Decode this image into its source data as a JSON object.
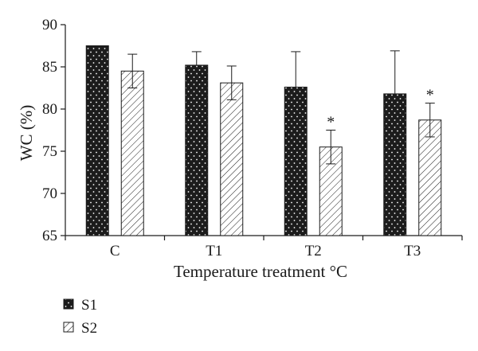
{
  "chart_data": {
    "type": "bar",
    "xlabel": "Temperature treatment °C",
    "ylabel": "WC (%)",
    "ylim": [
      65,
      90
    ],
    "yticks": [
      65,
      70,
      75,
      80,
      85,
      90
    ],
    "categories": [
      "C",
      "T1",
      "T2",
      "T3"
    ],
    "grid": false,
    "legend_position": "bottom-left",
    "series": [
      {
        "name": "S1",
        "fill": "dotted-black",
        "values": [
          87.5,
          85.2,
          82.6,
          81.8
        ],
        "errors": [
          0,
          1.6,
          4.2,
          5.1
        ],
        "significance": [
          "",
          "",
          "",
          ""
        ]
      },
      {
        "name": "S2",
        "fill": "hatched-white",
        "values": [
          84.5,
          83.1,
          75.5,
          78.7
        ],
        "errors": [
          2.0,
          2.0,
          2.0,
          2.0
        ],
        "significance": [
          "",
          "",
          "*",
          "*"
        ]
      }
    ]
  }
}
